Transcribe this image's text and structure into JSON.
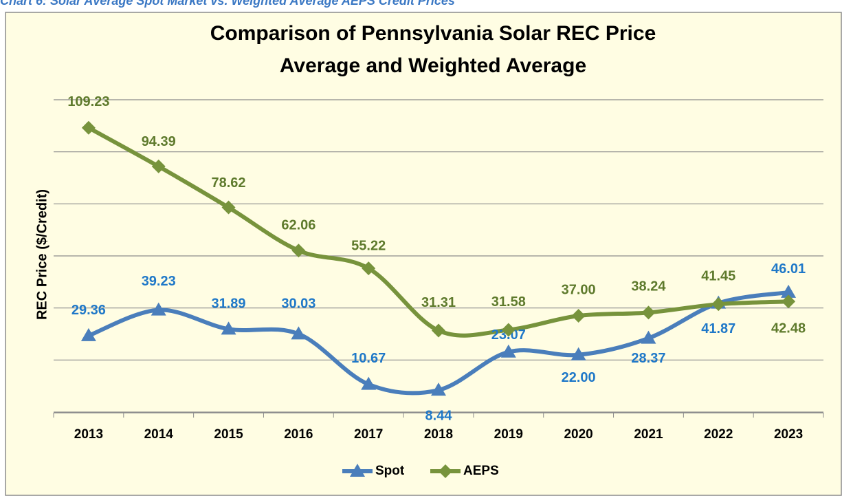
{
  "chart_data": {
    "type": "line",
    "caption": "Chart 6: Solar Average Spot Market vs. Weighted Average AEPS Credit Prices",
    "title": [
      "Comparison of Pennsylvania Solar REC Price",
      "Average and Weighted Average"
    ],
    "y_label": "REC Price ($/Credit)",
    "categories": [
      "2013",
      "2014",
      "2015",
      "2016",
      "2017",
      "2018",
      "2019",
      "2020",
      "2021",
      "2022",
      "2023"
    ],
    "series": [
      {
        "name": "Spot",
        "color": "#4a7ebb",
        "label_color": "#1f78c8",
        "marker": "triangle",
        "values": [
          29.36,
          39.23,
          31.89,
          30.03,
          10.67,
          8.44,
          23.07,
          22,
          28.37,
          41.87,
          46.01
        ],
        "value_labels": [
          "29.36",
          "39.23",
          "31.89",
          "30.03",
          "10.67",
          "8.44",
          "23.07",
          "22.00",
          "28.37",
          "41.87",
          "46.01"
        ]
      },
      {
        "name": "AEPS",
        "color": "#77933c",
        "label_color": "#5e7a2c",
        "marker": "diamond",
        "values": [
          109.23,
          94.39,
          78.62,
          62.06,
          55.22,
          31.31,
          31.58,
          37,
          38.24,
          41.45,
          42.48
        ],
        "value_labels": [
          "109.23",
          "94.39",
          "78.62",
          "62.06",
          "55.22",
          "31.31",
          "31.58",
          "37.00",
          "38.24",
          "41.45",
          "42.48"
        ]
      }
    ],
    "ylim": [
      0,
      120
    ],
    "yticks": [
      0,
      20,
      40,
      60,
      80,
      100,
      120
    ],
    "show_ytick_labels": false,
    "grid": true,
    "smooth": true,
    "legend": "bottom"
  }
}
